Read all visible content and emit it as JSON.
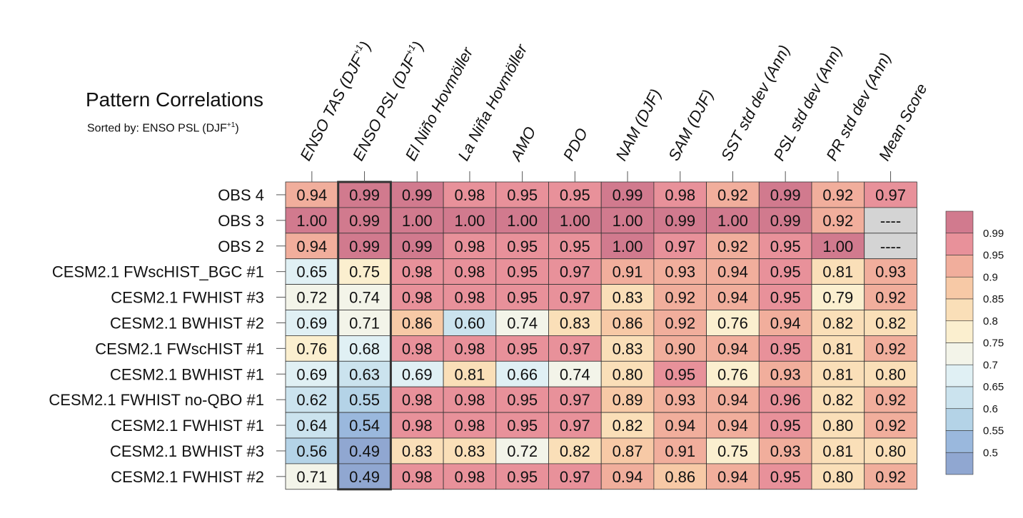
{
  "chart_data": {
    "type": "heatmap",
    "title": "Pattern Correlations",
    "subtitle": "Sorted by: ENSO PSL (DJF",
    "subtitle_sup": "+1",
    "subtitle_end": ")",
    "sorted_column_index": 1,
    "columns": [
      {
        "label": "ENSO TAS (DJF",
        "sup": "+1",
        "end": ")"
      },
      {
        "label": "ENSO PSL (DJF",
        "sup": "+1",
        "end": ")"
      },
      {
        "label": "El Niño Hovmöller",
        "sup": "",
        "end": ""
      },
      {
        "label": "La Niña Hovmöller",
        "sup": "",
        "end": ""
      },
      {
        "label": "AMO",
        "sup": "",
        "end": ""
      },
      {
        "label": "PDO",
        "sup": "",
        "end": ""
      },
      {
        "label": "NAM (DJF)",
        "sup": "",
        "end": ""
      },
      {
        "label": "SAM (DJF)",
        "sup": "",
        "end": ""
      },
      {
        "label": "SST std dev (Ann)",
        "sup": "",
        "end": ""
      },
      {
        "label": "PSL std dev (Ann)",
        "sup": "",
        "end": ""
      },
      {
        "label": "PR std dev (Ann)",
        "sup": "",
        "end": ""
      },
      {
        "label": "Mean Score",
        "sup": "",
        "end": ""
      }
    ],
    "rows": [
      {
        "label": "OBS 4",
        "values": [
          "0.94",
          "0.99",
          "0.99",
          "0.98",
          "0.95",
          "0.95",
          "0.99",
          "0.98",
          "0.92",
          "0.99",
          "0.92",
          "0.97"
        ]
      },
      {
        "label": "OBS 3",
        "values": [
          "1.00",
          "0.99",
          "1.00",
          "1.00",
          "1.00",
          "1.00",
          "1.00",
          "0.99",
          "1.00",
          "0.99",
          "0.92",
          "----"
        ]
      },
      {
        "label": "OBS 2",
        "values": [
          "0.94",
          "0.99",
          "0.99",
          "0.98",
          "0.95",
          "0.95",
          "1.00",
          "0.97",
          "0.92",
          "0.95",
          "1.00",
          "----"
        ]
      },
      {
        "label": "CESM2.1 FWscHIST_BGC #1",
        "values": [
          "0.65",
          "0.75",
          "0.98",
          "0.98",
          "0.95",
          "0.97",
          "0.91",
          "0.93",
          "0.94",
          "0.95",
          "0.81",
          "0.93"
        ]
      },
      {
        "label": "CESM2.1 FWHIST #3",
        "values": [
          "0.72",
          "0.74",
          "0.98",
          "0.98",
          "0.95",
          "0.97",
          "0.83",
          "0.92",
          "0.94",
          "0.95",
          "0.79",
          "0.92"
        ]
      },
      {
        "label": "CESM2.1 BWHIST #2",
        "values": [
          "0.69",
          "0.71",
          "0.86",
          "0.60",
          "0.74",
          "0.83",
          "0.86",
          "0.92",
          "0.76",
          "0.94",
          "0.82",
          "0.82"
        ]
      },
      {
        "label": "CESM2.1 FWscHIST #1",
        "values": [
          "0.76",
          "0.68",
          "0.98",
          "0.98",
          "0.95",
          "0.97",
          "0.83",
          "0.90",
          "0.94",
          "0.95",
          "0.81",
          "0.92"
        ]
      },
      {
        "label": "CESM2.1 BWHIST #1",
        "values": [
          "0.69",
          "0.63",
          "0.69",
          "0.81",
          "0.66",
          "0.74",
          "0.80",
          "0.95",
          "0.76",
          "0.93",
          "0.81",
          "0.80"
        ]
      },
      {
        "label": "CESM2.1 FWHIST no-QBO #1",
        "values": [
          "0.62",
          "0.55",
          "0.98",
          "0.98",
          "0.95",
          "0.97",
          "0.89",
          "0.93",
          "0.94",
          "0.96",
          "0.82",
          "0.92"
        ]
      },
      {
        "label": "CESM2.1 FWHIST #1",
        "values": [
          "0.64",
          "0.54",
          "0.98",
          "0.98",
          "0.95",
          "0.97",
          "0.82",
          "0.94",
          "0.94",
          "0.95",
          "0.80",
          "0.92"
        ]
      },
      {
        "label": "CESM2.1 BWHIST #3",
        "values": [
          "0.56",
          "0.49",
          "0.83",
          "0.83",
          "0.72",
          "0.82",
          "0.87",
          "0.91",
          "0.75",
          "0.93",
          "0.81",
          "0.80"
        ]
      },
      {
        "label": "CESM2.1 FWHIST #2",
        "values": [
          "0.71",
          "0.49",
          "0.98",
          "0.98",
          "0.95",
          "0.97",
          "0.94",
          "0.86",
          "0.94",
          "0.95",
          "0.80",
          "0.92"
        ]
      }
    ],
    "missing_color": "#d4d4d4",
    "colorbar": {
      "labels": [
        "0.99",
        "0.95",
        "0.9",
        "0.85",
        "0.8",
        "0.75",
        "0.7",
        "0.65",
        "0.6",
        "0.55",
        "0.5"
      ],
      "thresholds": [
        0.99,
        0.95,
        0.9,
        0.85,
        0.8,
        0.75,
        0.7,
        0.65,
        0.6,
        0.55,
        0.5
      ],
      "colors": [
        "#d17a8e",
        "#e8919a",
        "#f1ae9c",
        "#f7c9a6",
        "#fadfb8",
        "#fbefcf",
        "#f3f4e9",
        "#e0f0f4",
        "#cbe3ee",
        "#b4d3e7",
        "#9ab8dd",
        "#90a7d1"
      ]
    }
  }
}
